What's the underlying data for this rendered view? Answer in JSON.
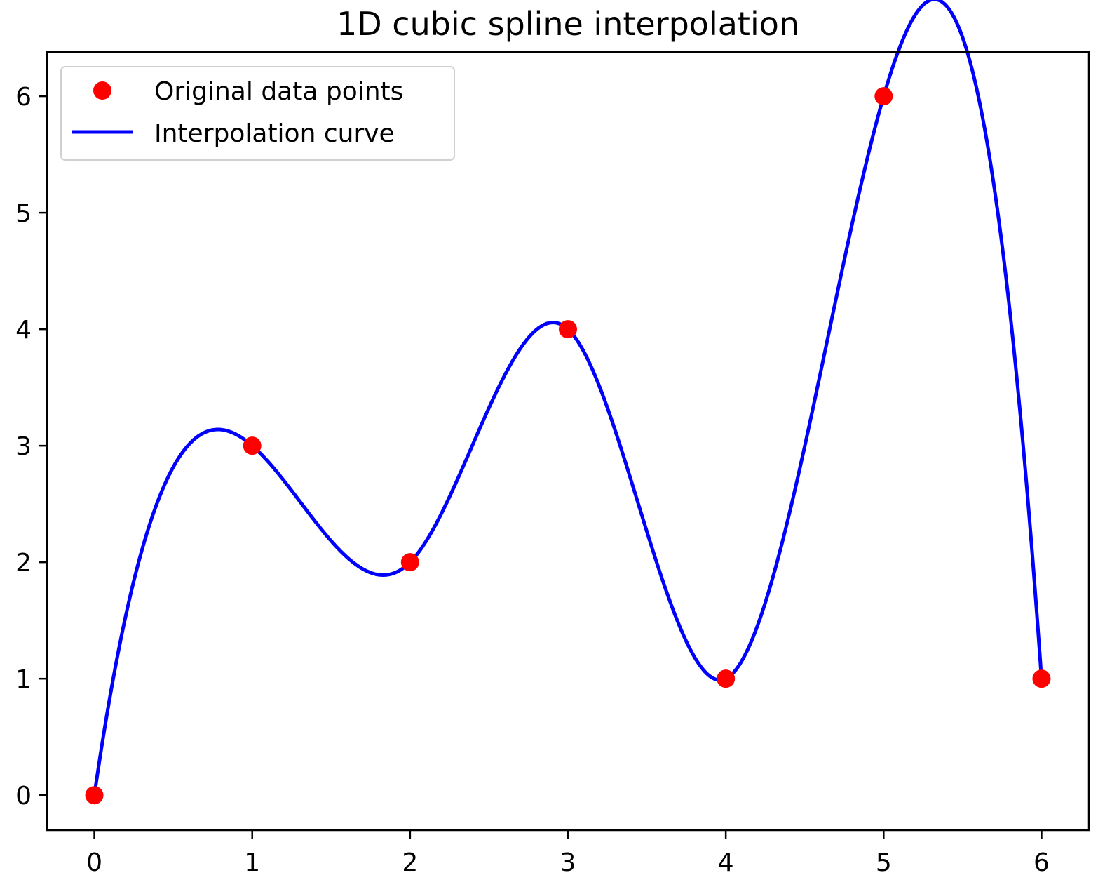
{
  "chart_data": {
    "type": "line",
    "title": "1D cubic spline interpolation",
    "xlabel": "",
    "ylabel": "",
    "xlim": [
      -0.3,
      6.3
    ],
    "ylim": [
      -0.3,
      6.38
    ],
    "x_ticks": [
      0,
      1,
      2,
      3,
      4,
      5,
      6
    ],
    "y_ticks": [
      0,
      1,
      2,
      3,
      4,
      5,
      6
    ],
    "grid": false,
    "legend_placement": "upper-left",
    "series": [
      {
        "name": "Original data points",
        "kind": "scatter",
        "color": "#ff0000",
        "x": [
          0,
          1,
          2,
          3,
          4,
          5,
          6
        ],
        "y": [
          0,
          3,
          2,
          4,
          1,
          6,
          1
        ]
      },
      {
        "name": "Interpolation curve",
        "kind": "line",
        "color": "#0000ff",
        "method": "cubic spline (not-a-knot) through original data points"
      }
    ]
  }
}
